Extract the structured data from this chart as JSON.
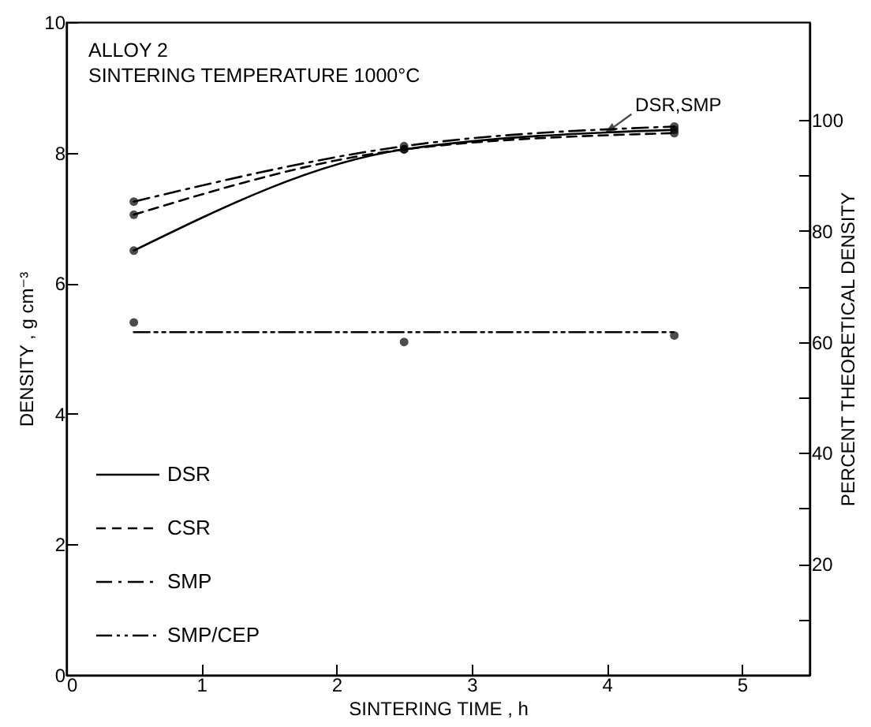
{
  "chart_data": {
    "type": "line",
    "title": "ALLOY 2",
    "subtitle": "SINTERING TEMPERATURE 1000°C",
    "xlabel": "SINTERING TIME , h",
    "ylabel": "DENSITY , g cm⁻³",
    "y2label": "PERCENT THEORETICAL DENSITY",
    "x": [
      0.5,
      2.5,
      4.5
    ],
    "xlim": [
      0,
      5.5
    ],
    "xticks": [
      0,
      1,
      2,
      3,
      4,
      5
    ],
    "ylim": [
      0,
      10
    ],
    "yticks": [
      0,
      2,
      4,
      6,
      8,
      10
    ],
    "y2lim": [
      0,
      117.6
    ],
    "y2ticks": [
      {
        "value": 10,
        "label": null
      },
      20,
      {
        "value": 30,
        "label": null
      },
      40,
      {
        "value": 50,
        "label": null
      },
      60,
      {
        "value": 70,
        "label": null
      },
      80,
      {
        "value": 90,
        "label": null
      },
      100
    ],
    "grid": false,
    "legend": "bottom left",
    "marker": "circle",
    "series": [
      {
        "name": "DSR",
        "color": "#000000",
        "line_style": "solid",
        "values": [
          6.5,
          8.05,
          8.35
        ]
      },
      {
        "name": "CSR",
        "color": "#000000",
        "line_style": "dashed",
        "values": [
          7.05,
          8.05,
          8.3
        ]
      },
      {
        "name": "SMP",
        "color": "#000000",
        "line_style": "dashdot",
        "values": [
          7.25,
          8.1,
          8.4
        ]
      },
      {
        "name": "SMP/CEP",
        "color": "#000000",
        "line_style": "dashdotdot",
        "marker": "none",
        "x": [
          0.5,
          4.5
        ],
        "values": [
          5.25,
          5.25
        ]
      },
      {
        "type": "scatter",
        "color": "#000000",
        "values": [
          5.4,
          5.1,
          5.2
        ]
      }
    ],
    "annotations": [
      {
        "text": "DSR,SMP",
        "x": 4.0,
        "y": 8.32
      }
    ]
  }
}
